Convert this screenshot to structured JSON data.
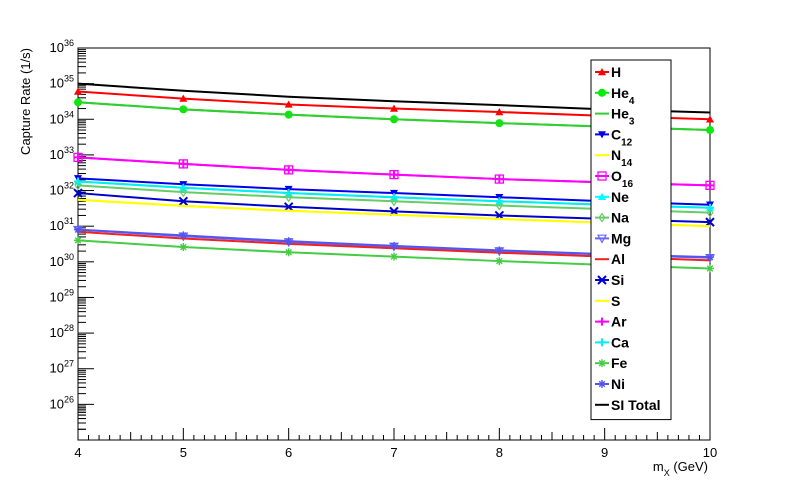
{
  "chart_data": {
    "type": "line",
    "title": "",
    "xlabel": "m_X (GeV)",
    "ylabel": "Capture Rate (1/s)",
    "x": [
      4,
      5,
      6,
      7,
      8,
      9,
      10
    ],
    "xlim": [
      4,
      10
    ],
    "ylim": [
      1e+25,
      1e+36
    ],
    "yscale": "log",
    "x_tick_labels": [
      "4",
      "5",
      "6",
      "7",
      "8",
      "9",
      "10"
    ],
    "y_tick_exponents": [
      "26",
      "27",
      "28",
      "29",
      "30",
      "31",
      "32",
      "33",
      "34",
      "35",
      "36"
    ],
    "y_tick_base": "10",
    "grid": false,
    "legend_position": "right",
    "series": [
      {
        "name": "H",
        "sub": "",
        "color": "#ff0000",
        "marker": "triangle",
        "values": [
          6e+34,
          3.8e+34,
          2.6e+34,
          2e+34,
          1.6e+34,
          1.25e+34,
          1e+34
        ]
      },
      {
        "name": "He",
        "sub": "4",
        "color": "#00ee00",
        "marker": "circle",
        "values": [
          3e+34,
          1.9e+34,
          1.35e+34,
          1e+34,
          7.8e+33,
          6.2e+33,
          5e+33
        ]
      },
      {
        "name": "He",
        "sub": "3",
        "color": "#33cc33",
        "marker": "none",
        "values": [
          3e+34,
          1.9e+34,
          1.35e+34,
          1e+34,
          7.8e+33,
          6.2e+33,
          5e+33
        ]
      },
      {
        "name": "C",
        "sub": "12",
        "color": "#0000ee",
        "marker": "triangle-down",
        "values": [
          2.2e+32,
          1.5e+32,
          1.1e+32,
          8.5e+31,
          6.5e+31,
          5e+31,
          4e+31
        ]
      },
      {
        "name": "N",
        "sub": "14",
        "color": "#ffff00",
        "marker": "none",
        "values": [
          5.5e+31,
          3.7e+31,
          2.7e+31,
          2.1e+31,
          1.6e+31,
          1.25e+31,
          1e+31
        ]
      },
      {
        "name": "O",
        "sub": "16",
        "color": "#ff00ff",
        "marker": "square-open",
        "values": [
          8.5e+32,
          5.6e+32,
          3.8e+32,
          2.8e+32,
          2.1e+32,
          1.7e+32,
          1.4e+32
        ]
      },
      {
        "name": "Ne",
        "sub": "",
        "color": "#00ffff",
        "marker": "triangle",
        "values": [
          1.8e+32,
          1.2e+32,
          8.5e+31,
          6.5e+31,
          5e+31,
          4e+31,
          3.3e+31
        ]
      },
      {
        "name": "Na",
        "sub": "",
        "color": "#66cc66",
        "marker": "diamond-open",
        "values": [
          1.4e+32,
          9e+31,
          6.5e+31,
          5e+31,
          3.8e+31,
          3e+31,
          2.4e+31
        ]
      },
      {
        "name": "Mg",
        "sub": "",
        "color": "#6666ff",
        "marker": "triangle-down-open",
        "values": [
          8e+30,
          5.2e+30,
          3.6e+30,
          2.7e+30,
          2e+30,
          1.6e+30,
          1.3e+30
        ]
      },
      {
        "name": "Al",
        "sub": "",
        "color": "#ee2222",
        "marker": "none",
        "values": [
          7e+30,
          4.5e+30,
          3.2e+30,
          2.4e+30,
          1.8e+30,
          1.4e+30,
          1.1e+30
        ]
      },
      {
        "name": "Si",
        "sub": "",
        "color": "#0000cc",
        "marker": "cross",
        "values": [
          8.5e+31,
          5e+31,
          3.5e+31,
          2.6e+31,
          2e+31,
          1.6e+31,
          1.3e+31
        ]
      },
      {
        "name": "S",
        "sub": "",
        "color": "#ffff00",
        "marker": "none",
        "values": [
          5.5e+31,
          3.7e+31,
          2.7e+31,
          2.1e+31,
          1.6e+31,
          1.25e+31,
          1e+31
        ]
      },
      {
        "name": "Ar",
        "sub": "",
        "color": "#ff00ff",
        "marker": "plus",
        "values": [
          8.5e+32,
          5.6e+32,
          3.8e+32,
          2.8e+32,
          2.1e+32,
          1.7e+32,
          1.4e+32
        ]
      },
      {
        "name": "Ca",
        "sub": "",
        "color": "#00eeee",
        "marker": "plus",
        "values": [
          1.8e+32,
          1.2e+32,
          8.5e+31,
          6.5e+31,
          5e+31,
          4e+31,
          3.3e+31
        ]
      },
      {
        "name": "Fe",
        "sub": "",
        "color": "#44cc44",
        "marker": "star",
        "values": [
          4e+30,
          2.6e+30,
          1.85e+30,
          1.4e+30,
          1.05e+30,
          8.2e+29,
          6.5e+29
        ]
      },
      {
        "name": "Ni",
        "sub": "",
        "color": "#5555ee",
        "marker": "star",
        "values": [
          8e+30,
          5.5e+30,
          3.8e+30,
          2.8e+30,
          2.1e+30,
          1.65e+30,
          1.35e+30
        ]
      },
      {
        "name": "SI Total",
        "sub": "",
        "color": "#000000",
        "marker": "none",
        "values": [
          1e+35,
          6.3e+34,
          4.3e+34,
          3.2e+34,
          2.5e+34,
          1.9e+34,
          1.55e+34
        ]
      }
    ]
  }
}
